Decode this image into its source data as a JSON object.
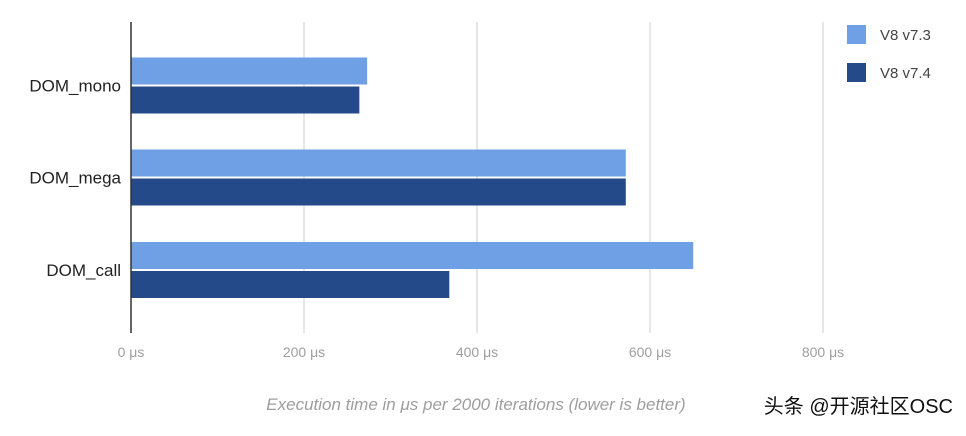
{
  "chart_data": {
    "type": "bar",
    "orientation": "horizontal",
    "categories": [
      "DOM_mono",
      "DOM_mega",
      "DOM_call"
    ],
    "series": [
      {
        "name": "V8 v7.3",
        "color": "#6fa0e6",
        "values": [
          273,
          572,
          650
        ]
      },
      {
        "name": "V8 v7.4",
        "color": "#244a8a",
        "values": [
          264,
          572,
          368
        ]
      }
    ],
    "xlabel": "Execution time in μs per 2000 iterations (lower is better)",
    "x_ticks": [
      "0 μs",
      "200 μs",
      "400 μs",
      "600 μs",
      "800 μs"
    ],
    "xlim": [
      0,
      800
    ],
    "grid": true,
    "legend_position": "top-right"
  },
  "watermark": "头条 @开源社区OSC",
  "colors": {
    "gridline": "#cccccc",
    "axis": "#333333",
    "tick_label": "#9e9e9e",
    "category_label": "#222222"
  }
}
